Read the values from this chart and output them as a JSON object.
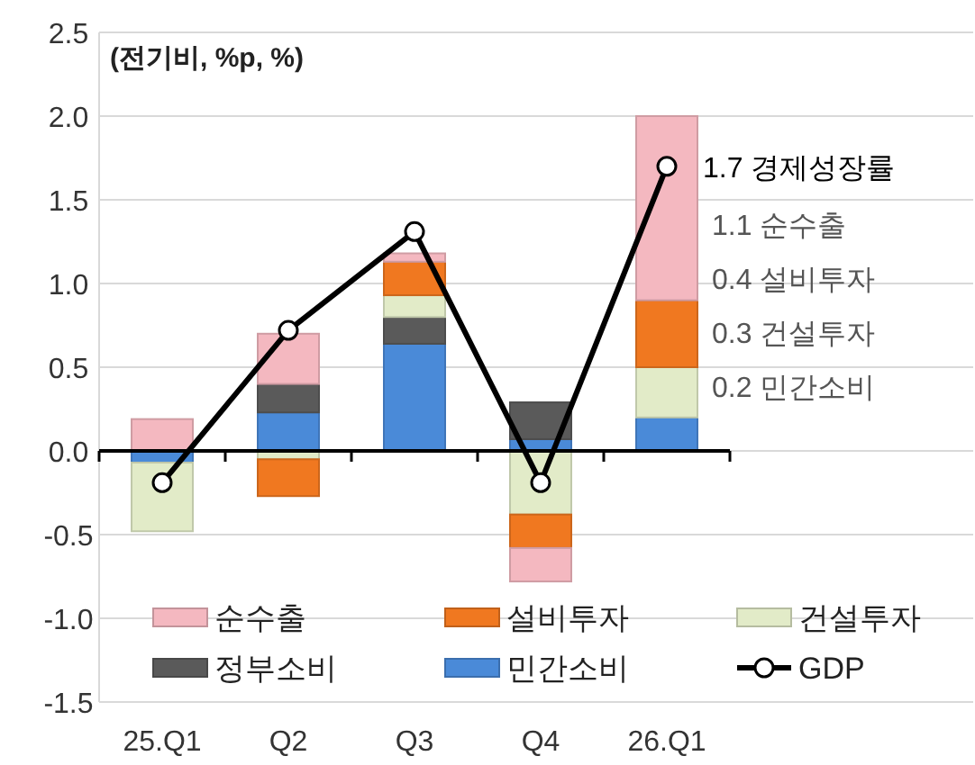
{
  "chart_data": {
    "type": "bar",
    "stacked": true,
    "title": "(전기비, %p, %)",
    "categories": [
      "25.Q1",
      "Q2",
      "Q3",
      "Q4",
      "26.Q1"
    ],
    "series": [
      {
        "name": "민간소비",
        "color": "#4a8ad8",
        "values": [
          -0.07,
          0.23,
          0.64,
          0.07,
          0.2
        ]
      },
      {
        "name": "정부소비",
        "color": "#5a5a5a",
        "values": [
          0,
          0.17,
          0.16,
          0.22,
          0
        ]
      },
      {
        "name": "건설투자",
        "color": "#e2ebc8",
        "values": [
          -0.41,
          -0.05,
          0.13,
          -0.38,
          0.3
        ]
      },
      {
        "name": "설비투자",
        "color": "#f07820",
        "values": [
          0,
          -0.22,
          0.2,
          -0.2,
          0.4
        ]
      },
      {
        "name": "순수출",
        "color": "#f4b8c0",
        "values": [
          0.19,
          0.3,
          0.05,
          -0.2,
          1.1
        ]
      },
      {
        "name": "GDP",
        "type": "line",
        "color": "#000000",
        "marker": "circle",
        "values": [
          -0.19,
          0.72,
          1.31,
          -0.19,
          1.7
        ],
        "value_labels": [
          null,
          null,
          null,
          null,
          "1.7 경제성장률"
        ]
      }
    ],
    "ylim": [
      -1.5,
      2.5
    ],
    "yticks": [
      {
        "value": 2.5,
        "label": "2.5"
      },
      {
        "value": 2,
        "label": "2.0"
      },
      {
        "value": 1.5,
        "label": "1.5"
      },
      {
        "value": 1,
        "label": "1.0"
      },
      {
        "value": 0.5,
        "label": "0.5"
      },
      {
        "value": 0,
        "label": "0.0"
      },
      {
        "value": -0.5,
        "label": "-0.5"
      },
      {
        "value": -1,
        "label": "-1.0"
      },
      {
        "value": -1.5,
        "label": "-1.5"
      }
    ],
    "annotations": [
      "1.1 순수출",
      "0.4 설비투자",
      "0.3 건설투자",
      "0.2 민간소비"
    ],
    "grid": "y",
    "legend": "bottom"
  }
}
